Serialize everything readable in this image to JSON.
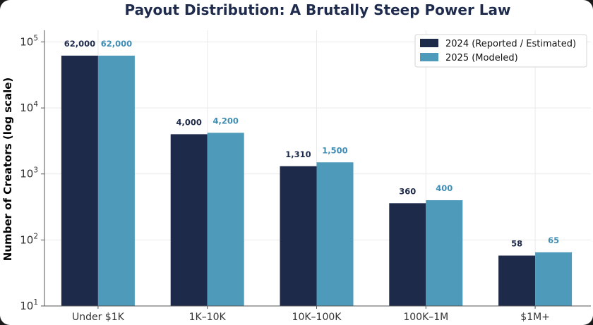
{
  "chart_data": {
    "type": "bar",
    "title": "Payout Distribution: A Brutally Steep Power Law",
    "xlabel": "",
    "ylabel": "Number of Creators (log scale)",
    "yscale": "log",
    "ylim": [
      10,
      150000
    ],
    "grid": true,
    "legend_position": "top-right",
    "categories": [
      "Under $1K",
      "$1K–$10K",
      "$10K–$100K",
      "$100K–$1M",
      "$1M+"
    ],
    "category_labels": [
      "Under $1K",
      "1K–10K",
      "10K–100K",
      "100K–1M",
      "$1M+"
    ],
    "yticks": [
      {
        "value": 10,
        "base": "10",
        "exp": "1"
      },
      {
        "value": 100,
        "base": "10",
        "exp": "2"
      },
      {
        "value": 1000,
        "base": "10",
        "exp": "3"
      },
      {
        "value": 10000,
        "base": "10",
        "exp": "4"
      },
      {
        "value": 100000,
        "base": "10",
        "exp": "5"
      }
    ],
    "series": [
      {
        "name": "2024 (Reported / Estimated)",
        "color": "#1e2a4a",
        "values": [
          62000,
          4000,
          1310,
          360,
          58
        ],
        "labels": [
          "62,000",
          "4,000",
          "1,310",
          "360",
          "58"
        ]
      },
      {
        "name": "2025 (Modeled)",
        "color": "#4e9aba",
        "label_color": "#3f8db5",
        "values": [
          62000,
          4200,
          1500,
          400,
          65
        ],
        "labels": [
          "62,000",
          "4,200",
          "1,500",
          "400",
          "65"
        ]
      }
    ]
  }
}
